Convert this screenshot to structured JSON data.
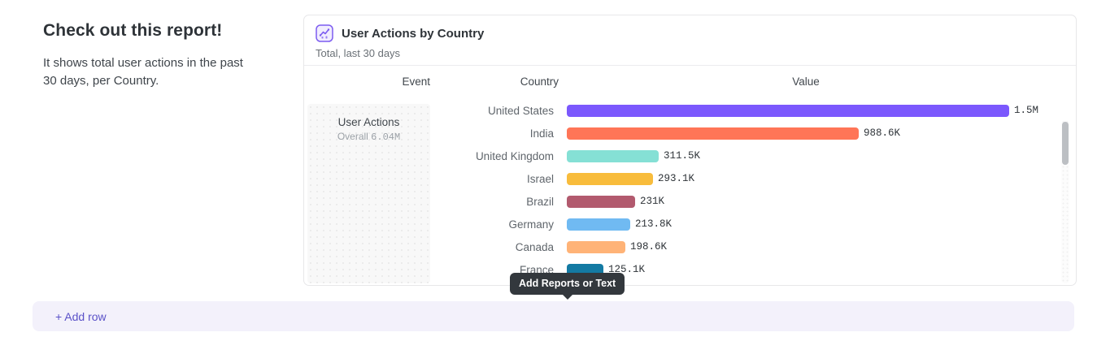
{
  "intro": {
    "heading": "Check out this report!",
    "body": "It shows total user actions in the past 30 days, per Country."
  },
  "card": {
    "icon": "line-chart-icon",
    "title": "User Actions by Country",
    "subtitle": "Total, last 30 days",
    "columns": {
      "event": "Event",
      "country": "Country",
      "value": "Value"
    },
    "event_cell": {
      "name": "User Actions",
      "overall_label": "Overall",
      "overall_value": "6.04M"
    }
  },
  "chart_data": {
    "type": "bar",
    "orientation": "horizontal",
    "title": "User Actions by Country",
    "subtitle": "Total, last 30 days",
    "event": "User Actions",
    "overall_total": "6.04M",
    "categories": [
      "United States",
      "India",
      "United Kingdom",
      "Israel",
      "Brazil",
      "Germany",
      "Canada",
      "France"
    ],
    "values": [
      1500000,
      988600,
      311500,
      293100,
      231000,
      213800,
      198600,
      125100
    ],
    "value_labels": [
      "1.5M",
      "988.6K",
      "311.5K",
      "293.1K",
      "231K",
      "213.8K",
      "198.6K",
      "125.1K"
    ],
    "bar_colors": [
      "#7b58fd",
      "#ff7557",
      "#85e0d5",
      "#f8bc3c",
      "#b25a6e",
      "#70baf2",
      "#ffb377",
      "#147aa3"
    ],
    "xlim": [
      0,
      1500000
    ],
    "legend": false,
    "grid": false
  },
  "tooltip": {
    "text": "Add Reports or Text"
  },
  "footer": {
    "add_row_label": "+ Add row"
  },
  "colors": {
    "accent_purple": "#7c5cf0",
    "tooltip_bg": "#33383d",
    "add_row_bg": "#f3f1fb",
    "add_row_text": "#5a51c8",
    "card_border": "#e7e7e9"
  }
}
